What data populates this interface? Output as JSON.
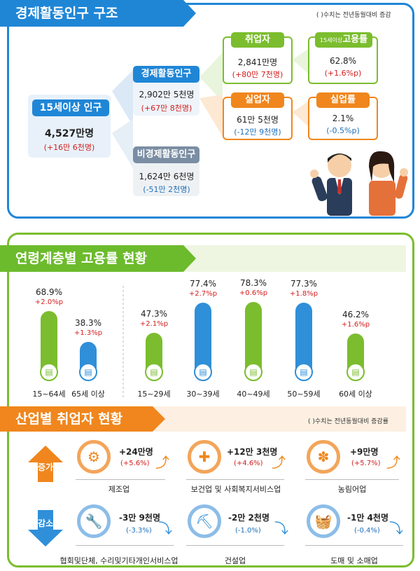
{
  "structure": {
    "title": "경제활동인구 구조",
    "note": "( )수치는 전년동월대비 증감",
    "pop15": {
      "label": "15세이상 인구",
      "value": "4,527만명",
      "change": "(+16만 6천명)"
    },
    "active": {
      "label": "경제활동인구",
      "value": "2,902만 5천명",
      "change": "(+67만 8천명)"
    },
    "inactive": {
      "label": "비경제활동인구",
      "value": "1,624만 6천명",
      "change": "(-51만 2천명)"
    },
    "employed": {
      "label": "취업자",
      "value": "2,841만명",
      "change": "(+80만 7천명)"
    },
    "emp_rate": {
      "label_prefix": "15세이상",
      "label_main": "고용률",
      "value": "62.8%",
      "change": "(+1.6%p)"
    },
    "unemployed": {
      "label": "실업자",
      "value": "61만 5천명",
      "change": "(-12만 9천명)"
    },
    "unemp_rate": {
      "label": "실업률",
      "value": "2.1%",
      "change": "(-0.5%p)"
    }
  },
  "age": {
    "title": "연령계층별 고용률 현황",
    "items": [
      {
        "label": "15~64세",
        "value": "68.9%",
        "change": "+2.0%p",
        "level": 68.9,
        "color": "#7bbd2e"
      },
      {
        "label": "65세 이상",
        "value": "38.3%",
        "change": "+1.3%p",
        "level": 38.3,
        "color": "#2f8fd8"
      },
      {
        "label": "15~29세",
        "value": "47.3%",
        "change": "+2.1%p",
        "level": 47.3,
        "color": "#7bbd2e"
      },
      {
        "label": "30~39세",
        "value": "77.4%",
        "change": "+2.7%p",
        "level": 77.4,
        "color": "#2f8fd8"
      },
      {
        "label": "40~49세",
        "value": "78.3%",
        "change": "+0.6%p",
        "level": 78.3,
        "color": "#7bbd2e"
      },
      {
        "label": "50~59세",
        "value": "77.3%",
        "change": "+1.8%p",
        "level": 77.3,
        "color": "#2f8fd8"
      },
      {
        "label": "60세 이상",
        "value": "46.2%",
        "change": "+1.6%p",
        "level": 46.2,
        "color": "#7bbd2e"
      }
    ]
  },
  "industry": {
    "title": "산업별 취업자 현황",
    "note": "( )수치는 전년동월대비 증감률",
    "increase_label": "증가",
    "decrease_label": "감소",
    "increase": [
      {
        "name": "제조업",
        "value": "+24만명",
        "change": "(+5.6%)"
      },
      {
        "name": "보건업 및 사회복지서비스업",
        "value": "+12만 3천명",
        "change": "(+4.6%)"
      },
      {
        "name": "농림어업",
        "value": "+9만명",
        "change": "(+5.7%)"
      }
    ],
    "decrease": [
      {
        "name": "협회및단체, 수리및기타개인서비스업",
        "value": "-3만 9천명",
        "change": "(-3.3%)"
      },
      {
        "name": "건설업",
        "value": "-2만 2천명",
        "change": "(-1.0%)"
      },
      {
        "name": "도매 및 소매업",
        "value": "-1만 4천명",
        "change": "(-0.4%)"
      }
    ]
  }
}
